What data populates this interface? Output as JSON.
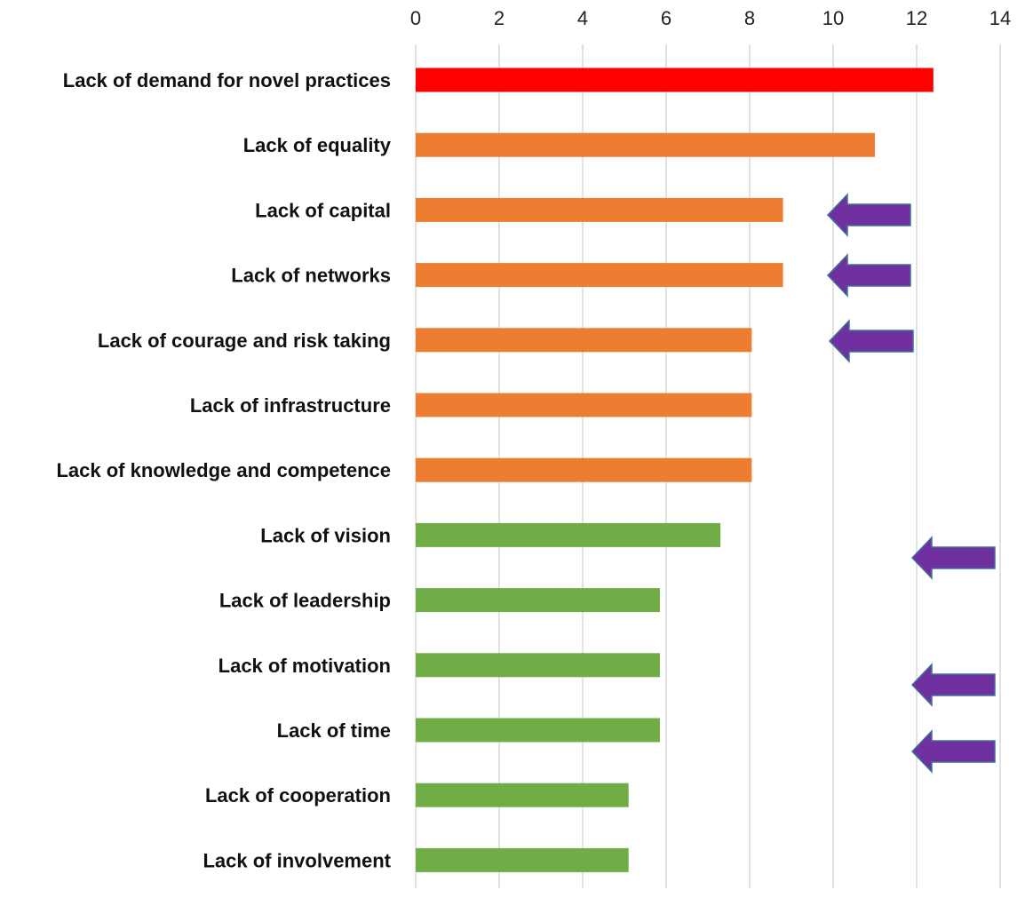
{
  "chart_data": {
    "type": "bar",
    "orientation": "horizontal",
    "title": "",
    "xlabel": "",
    "ylabel": "",
    "xlim": [
      0,
      14
    ],
    "x_ticks": [
      0,
      2,
      4,
      6,
      8,
      10,
      12,
      14
    ],
    "x_axis_position": "top",
    "grid": true,
    "categories": [
      "Lack of demand for novel practices",
      "Lack of equality",
      "Lack of capital",
      "Lack of networks",
      "Lack of courage and risk taking",
      "Lack of infrastructure",
      "Lack of knowledge and competence",
      "Lack of vision",
      "Lack of leadership",
      "Lack of motivation",
      "Lack of time",
      "Lack of cooperation",
      "Lack of involvement"
    ],
    "values": [
      12.4,
      11.0,
      8.8,
      8.8,
      8.05,
      8.05,
      8.05,
      7.3,
      5.85,
      5.85,
      5.85,
      5.1,
      5.1
    ],
    "bar_colors": [
      "#ff0000",
      "#ed7d31",
      "#ed7d31",
      "#ed7d31",
      "#ed7d31",
      "#ed7d31",
      "#ed7d31",
      "#70ad47",
      "#70ad47",
      "#70ad47",
      "#70ad47",
      "#70ad47",
      "#70ad47"
    ],
    "annotations": [
      {
        "type": "arrow",
        "direction": "left",
        "color": "#7030a0"
      },
      {
        "type": "arrow",
        "direction": "left",
        "color": "#7030a0"
      },
      {
        "type": "arrow",
        "direction": "left",
        "color": "#7030a0"
      },
      {
        "type": "arrow",
        "direction": "left",
        "color": "#7030a0"
      },
      {
        "type": "arrow",
        "direction": "left",
        "color": "#7030a0"
      },
      {
        "type": "arrow",
        "direction": "left",
        "color": "#7030a0"
      }
    ]
  }
}
